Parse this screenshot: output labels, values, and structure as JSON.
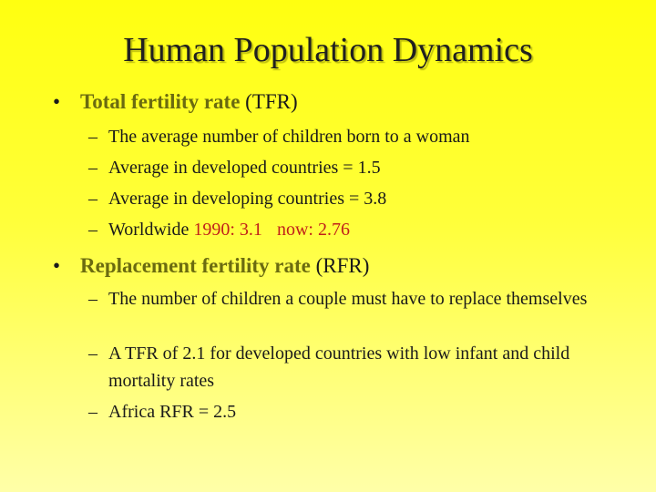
{
  "slide": {
    "title": "Human Population Dynamics",
    "bullets": [
      {
        "marker": "•",
        "term": "Total fertility rate",
        "abbrev": "(TFR)",
        "subitems": [
          {
            "marker": "–",
            "text": "The average number of children born to a woman"
          },
          {
            "marker": "–",
            "text": "Average in developed countries = 1.5"
          },
          {
            "marker": "–",
            "text": "Average in developing countries = 3.8"
          },
          {
            "marker": "–",
            "text": "Worldwide",
            "value_1990": "1990: 3.1",
            "value_now": "now: 2.76"
          }
        ]
      },
      {
        "marker": "•",
        "term": "Replacement fertility rate",
        "abbrev": "(RFR)",
        "subitems": [
          {
            "marker": "–",
            "text": "The number of children a couple must have to replace themselves"
          },
          {
            "marker": "–",
            "text": "A TFR of 2.1 for developed countries with low infant and child mortality rates"
          },
          {
            "marker": "–",
            "text": "Africa RFR = 2.5"
          }
        ]
      }
    ]
  },
  "colors": {
    "term_highlight": "#6b6b10",
    "value_red": "#c0201a",
    "background_top": "#ffff10",
    "background_bottom": "#ffffa8"
  }
}
